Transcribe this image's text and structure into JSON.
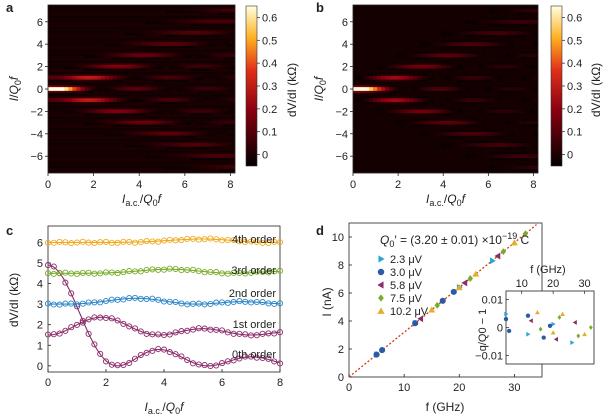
{
  "colors": {
    "hot_low": "#000000",
    "hot_mid": "#b3001a",
    "hot_hi": "#ffd23c",
    "hot_top": "#ffffff",
    "purple": "#8b2c6a",
    "blue": "#2a86c8",
    "green": "#78ad2b",
    "orange": "#f0a91d",
    "cyan": "#29a6d8",
    "dark_blue": "#2d5aa6",
    "gold": "#e3ae2a",
    "fit_line": "#d23a12"
  },
  "chart_data": [
    {
      "panel": "a",
      "type": "heatmap",
      "xlabel": "I_a.c./Q0 f",
      "ylabel": "I/Q0 f",
      "xlim": [
        0,
        8.2
      ],
      "ylim": [
        -7.5,
        7.5
      ],
      "xticks": [
        "0",
        "2",
        "4",
        "6",
        "8"
      ],
      "yticks": [
        "6",
        "4",
        "2",
        "0",
        "-2",
        "-4",
        "-6"
      ],
      "colorbar": {
        "label": "dV/dI (kΩ)",
        "range": [
          -0.05,
          0.65
        ],
        "ticks": [
          "0.6",
          "0.5",
          "0.4",
          "0.3",
          "0.2",
          "0.1",
          "0"
        ]
      },
      "description_of_data": "Measured differential resistance map with bright peaks around I/Q0f = ±1 at low drive and Bessel-like striations"
    },
    {
      "panel": "b",
      "type": "heatmap",
      "xlabel": "I_a.c./Q0 f",
      "ylabel": "I/Q0 f",
      "xlim": [
        0,
        8.2
      ],
      "ylim": [
        -7.5,
        7.5
      ],
      "xticks": [
        "0",
        "2",
        "4",
        "6",
        "8"
      ],
      "yticks": [
        "6",
        "4",
        "2",
        "0",
        "-2",
        "-4",
        "-6"
      ],
      "colorbar": {
        "label": "dV/dI (kΩ)",
        "range": [
          -0.05,
          0.65
        ],
        "ticks": [
          "0.6",
          "0.5",
          "0.4",
          "0.3",
          "0.2",
          "0.1",
          "0"
        ]
      }
    },
    {
      "panel": "c",
      "type": "line",
      "xlabel": "I_a.c./Q0 f",
      "ylabel": "dV/dI (kΩ)",
      "xlim": [
        0,
        8
      ],
      "ylim": [
        -0.3,
        6.8
      ],
      "xticks": [
        0,
        2,
        4,
        6,
        8
      ],
      "yticks": [
        0,
        1,
        2,
        3,
        4,
        5,
        6
      ],
      "series": [
        {
          "name": "0th order",
          "offset": 0,
          "order": 0,
          "color": "purple"
        },
        {
          "name": "1st order",
          "offset": 1.5,
          "order": 1,
          "color": "purple"
        },
        {
          "name": "2nd order",
          "offset": 3.0,
          "order": 2,
          "color": "blue"
        },
        {
          "name": "3rd order",
          "offset": 4.5,
          "order": 3,
          "color": "green"
        },
        {
          "name": "4th order",
          "offset": 6.0,
          "order": 4,
          "color": "orange"
        }
      ]
    },
    {
      "panel": "d",
      "type": "scatter",
      "xlabel": "f (GHz)",
      "ylabel": "I (nA)",
      "xlim": [
        0,
        35
      ],
      "ylim": [
        0,
        11
      ],
      "xticks": [
        0,
        10,
        20,
        30
      ],
      "yticks": [
        0,
        2,
        4,
        6,
        8,
        10
      ],
      "annotation": "Q′0 = (3.20 ± 0.01) ×10⁻¹⁹ C",
      "fit": {
        "slope_nA_per_GHz": 0.32
      },
      "series": [
        {
          "name": "2.3 μV",
          "marker": "triangle-right",
          "color": "cyan",
          "x": [
            5,
            12,
            20,
            26
          ],
          "y": [
            1.6,
            3.84,
            6.4,
            8.3
          ]
        },
        {
          "name": "3.0 μV",
          "marker": "circle",
          "color": "dark_blue",
          "x": [
            5,
            6,
            12,
            17,
            19
          ],
          "y": [
            1.6,
            1.92,
            3.84,
            5.44,
            6.08
          ]
        },
        {
          "name": "5.8 μV",
          "marker": "triangle-left",
          "color": "purple",
          "x": [
            13,
            21,
            27
          ],
          "y": [
            4.16,
            6.72,
            8.64
          ]
        },
        {
          "name": "7.5 μV",
          "marker": "diamond",
          "color": "green",
          "x": [
            16,
            22,
            28,
            32
          ],
          "y": [
            5.12,
            7.04,
            8.96,
            10.24
          ]
        },
        {
          "name": "10.2 μV",
          "marker": "triangle-up",
          "color": "gold",
          "x": [
            15,
            20,
            23,
            30
          ],
          "y": [
            4.8,
            6.4,
            7.36,
            9.6
          ]
        }
      ],
      "inset": {
        "xlabel": "f (GHz)",
        "ylabel": "q/Q0 − 1",
        "xticks": [
          "10",
          "20",
          "30"
        ],
        "yticks": [
          "0.01",
          "0",
          "-0.01"
        ]
      }
    }
  ],
  "labels": {
    "a": "a",
    "b": "b",
    "c": "c",
    "d": "d",
    "order0": "0th order",
    "order1": "1st order",
    "order2": "2nd order",
    "order3": "3rd order",
    "order4": "4th order",
    "annot": "Q′0 = (3.20 ± 0.01) ×10⁻¹⁹ C",
    "leg1": "2.3 μV",
    "leg2": "3.0 μV",
    "leg3": "5.8 μV",
    "leg4": "7.5 μV",
    "leg5": "10.2 μV",
    "cbar_label": "dV/dI (kΩ)",
    "c_ylabel": "dV/dI (kΩ)",
    "d_ylabel": "I (nA)",
    "d_xlabel": "f (GHz)",
    "inset_xlabel": "f (GHz)",
    "inset_ylabel": "q/Q0 − 1"
  }
}
